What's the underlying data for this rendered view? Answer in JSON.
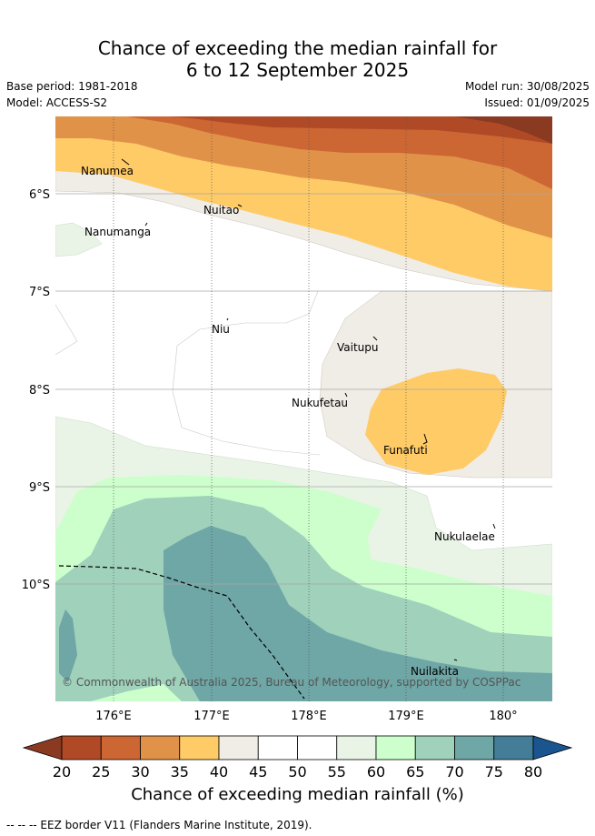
{
  "title_line1": "Chance of exceeding the median rainfall for",
  "title_line2": "6 to 12 September 2025",
  "base_period": "Base period: 1981-2018",
  "model": "Model: ACCESS-S2",
  "model_run": "Model run: 30/08/2025",
  "issued": "Issued: 01/09/2025",
  "lat_labels": [
    "6°S",
    "7°S",
    "8°S",
    "9°S",
    "10°S"
  ],
  "lon_labels": [
    "176°E",
    "177°E",
    "178°E",
    "179°E",
    "180°"
  ],
  "islands": [
    "Nanumea",
    "Nanumanga",
    "Nuitao",
    "Niu",
    "Vaitupu",
    "Nukufetau",
    "Funafuti",
    "Nukulaelae",
    "Nuilakita"
  ],
  "copyright": "© Commonwealth of Australia 2025, Bureau of Meteorology, supported by COSPPac",
  "colorbar": {
    "ticks": [
      "20",
      "25",
      "30",
      "35",
      "40",
      "45",
      "50",
      "55",
      "60",
      "65",
      "70",
      "75",
      "80"
    ],
    "colors": [
      "#b04a26",
      "#cc6633",
      "#e09249",
      "#fecb67",
      "#f0ece6",
      "#ffffff",
      "#ffffff",
      "#eaf4e6",
      "#ccffcc",
      "#9fd1bb",
      "#6fa6a6",
      "#437d98"
    ],
    "under_color": "#8b3a22",
    "over_color": "#1a5590",
    "title": "Chance of exceeding median rainfall (%)"
  },
  "legend_eez": "-- -- -- EEZ border V11 (Flanders Marine Institute, 2019)."
}
